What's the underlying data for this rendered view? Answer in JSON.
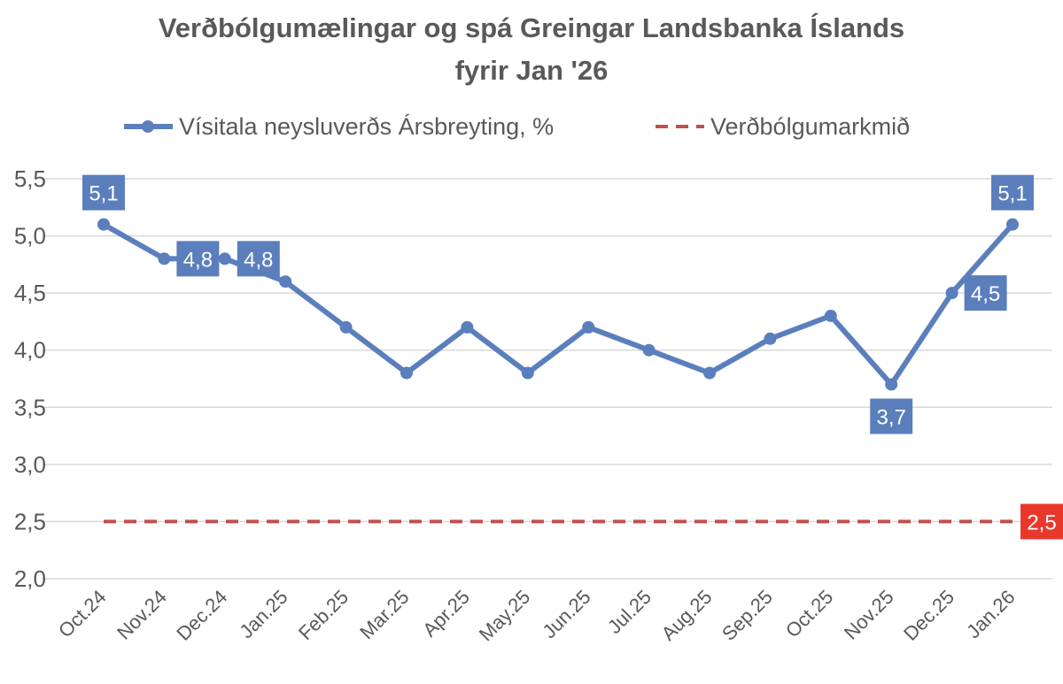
{
  "chart_data": {
    "type": "line",
    "title_lines": [
      "Verðbólgumælingar og spá Greingar Landsbanka Íslands",
      "fyrir Jan '26"
    ],
    "categories": [
      "Oct.24",
      "Nov.24",
      "Dec.24",
      "Jan.25",
      "Feb.25",
      "Mar.25",
      "Apr.25",
      "May.25",
      "Jun.25",
      "Jul.25",
      "Aug.25",
      "Sep.25",
      "Oct.25",
      "Nov.25",
      "Dec.25",
      "Jan.26"
    ],
    "y_tick_labels": [
      "2,0",
      "2,5",
      "3,0",
      "3,5",
      "4,0",
      "4,5",
      "5,0",
      "5,5"
    ],
    "ylim": [
      2.0,
      5.5
    ],
    "grid": true,
    "legend_position": "top",
    "series": [
      {
        "name": "Vísitala neysluverðs Ársbreyting, %",
        "style": "solid-markers",
        "color": "#5b7fbd",
        "values": [
          5.1,
          4.8,
          4.8,
          4.6,
          4.2,
          3.8,
          4.2,
          3.8,
          4.2,
          4.0,
          3.8,
          4.1,
          4.3,
          3.7,
          4.5,
          5.1
        ],
        "data_labels": [
          {
            "index": 0,
            "text": "5,1",
            "placement": "above"
          },
          {
            "index": 1,
            "text": "4,8",
            "placement": "right"
          },
          {
            "index": 2,
            "text": "4,8",
            "placement": "right"
          },
          {
            "index": 13,
            "text": "3,7",
            "placement": "below"
          },
          {
            "index": 14,
            "text": "4,5",
            "placement": "right"
          },
          {
            "index": 15,
            "text": "5,1",
            "placement": "above"
          }
        ]
      },
      {
        "name": "Verðbólgumarkmið",
        "style": "dashed",
        "color": "#c0504d",
        "values": [
          2.5,
          2.5,
          2.5,
          2.5,
          2.5,
          2.5,
          2.5,
          2.5,
          2.5,
          2.5,
          2.5,
          2.5,
          2.5,
          2.5,
          2.5,
          2.5
        ],
        "data_labels": [
          {
            "index": 15,
            "text": "2,5",
            "placement": "right",
            "color": "#e8382c"
          }
        ]
      }
    ]
  }
}
